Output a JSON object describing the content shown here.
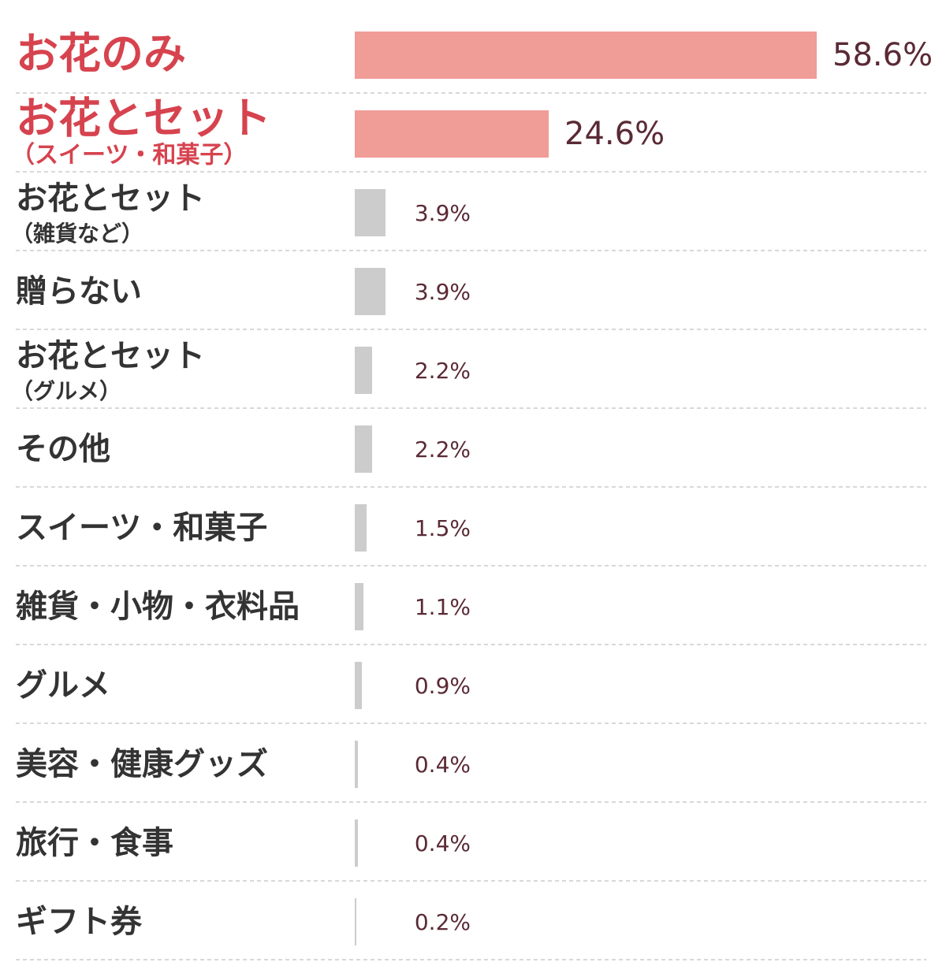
{
  "chart_data": {
    "type": "bar",
    "orientation": "horizontal",
    "categories": [
      "お花のみ",
      "お花とセット",
      "お花とセット",
      "贈らない",
      "お花とセット",
      "その他",
      "スイーツ・和菓子",
      "雑貨・小物・衣料品",
      "グルメ",
      "美容・健康グッズ",
      "旅行・食事",
      "ギフト券"
    ],
    "category_notes": [
      null,
      "（スイーツ・和菓子）",
      "（雑貨など）",
      null,
      "（グルメ）",
      null,
      null,
      null,
      null,
      null,
      null,
      null
    ],
    "values": [
      58.6,
      24.6,
      3.9,
      3.9,
      2.2,
      2.2,
      1.5,
      1.1,
      0.9,
      0.4,
      0.4,
      0.2
    ],
    "value_labels": [
      "58.6%",
      "24.6%",
      "3.9%",
      "3.9%",
      "2.2%",
      "2.2%",
      "1.5%",
      "1.1%",
      "0.9%",
      "0.4%",
      "0.4%",
      "0.2%"
    ],
    "highlighted": [
      true,
      true,
      false,
      false,
      false,
      false,
      false,
      false,
      false,
      false,
      false,
      false
    ],
    "colors": [
      "#f09c97",
      "#f09c97",
      "#cccccc",
      "#cccccc",
      "#cccccc",
      "#cccccc",
      "#cccccc",
      "#cccccc",
      "#cccccc",
      "#cccccc",
      "#cccccc",
      "#cccccc"
    ],
    "xlim": [
      0,
      58.6
    ]
  }
}
